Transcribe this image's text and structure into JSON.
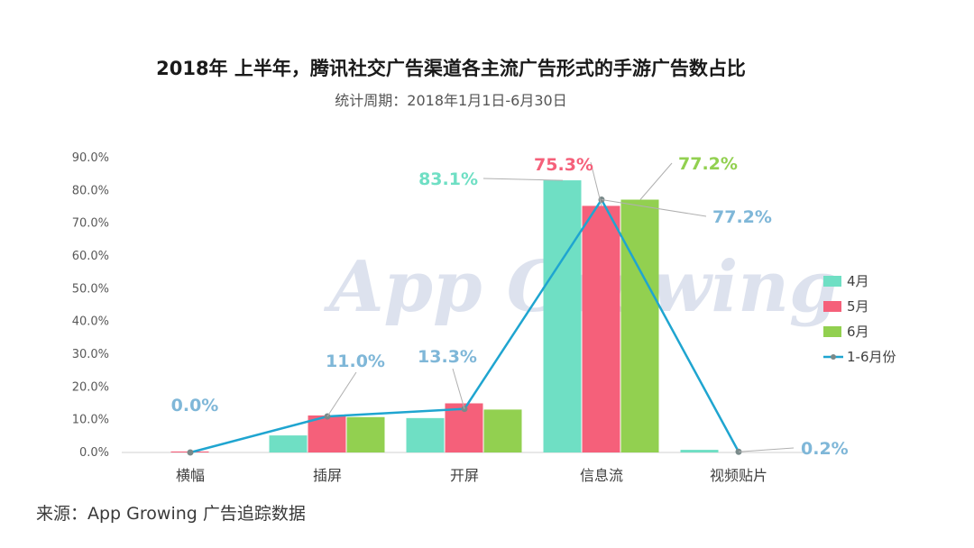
{
  "chart_data": {
    "type": "bar",
    "title": "2018年 上半年，腾讯社交广告渠道各主流广告形式的手游广告数占比",
    "subtitle": "统计周期：2018年1月1日-6月30日",
    "categories": [
      "横幅",
      "插屏",
      "开屏",
      "信息流",
      "视频贴片"
    ],
    "ylim": [
      0,
      90
    ],
    "yticks": [
      "0.0%",
      "10.0%",
      "20.0%",
      "30.0%",
      "40.0%",
      "50.0%",
      "60.0%",
      "70.0%",
      "80.0%",
      "90.0%"
    ],
    "series": [
      {
        "name": "4月",
        "type": "bar",
        "color": "#6fdfc4",
        "values": [
          0.0,
          5.2,
          10.5,
          83.1,
          0.8
        ]
      },
      {
        "name": "5月",
        "type": "bar",
        "color": "#f5607a",
        "values": [
          0.3,
          11.3,
          15.0,
          75.3,
          0.0
        ]
      },
      {
        "name": "6月",
        "type": "bar",
        "color": "#92d050",
        "values": [
          0.0,
          10.8,
          13.1,
          77.2,
          0.0
        ]
      },
      {
        "name": "1-6月份",
        "type": "line",
        "color": "#1fa5d0",
        "values": [
          0.0,
          11.0,
          13.3,
          77.2,
          0.2
        ]
      }
    ],
    "annotations": [
      {
        "text": "0.0%",
        "series": "1-6月份",
        "category": "横幅",
        "color": "#7fb7d8"
      },
      {
        "text": "11.0%",
        "series": "1-6月份",
        "category": "插屏",
        "color": "#7fb7d8"
      },
      {
        "text": "13.3%",
        "series": "1-6月份",
        "category": "开屏",
        "color": "#7fb7d8"
      },
      {
        "text": "83.1%",
        "series": "4月",
        "category": "信息流",
        "color": "#6fdfc4"
      },
      {
        "text": "75.3%",
        "series": "5月",
        "category": "信息流",
        "color": "#f5607a"
      },
      {
        "text": "77.2%",
        "series": "6月",
        "category": "信息流",
        "color": "#92d050"
      },
      {
        "text": "77.2%",
        "series": "1-6月份",
        "category": "信息流",
        "color": "#7fb7d8"
      },
      {
        "text": "0.2%",
        "series": "1-6月份",
        "category": "视频贴片",
        "color": "#7fb7d8"
      }
    ],
    "legend_position": "right",
    "grid": false
  },
  "watermark": "App Growing",
  "source": "来源：App Growing 广告追踪数据"
}
